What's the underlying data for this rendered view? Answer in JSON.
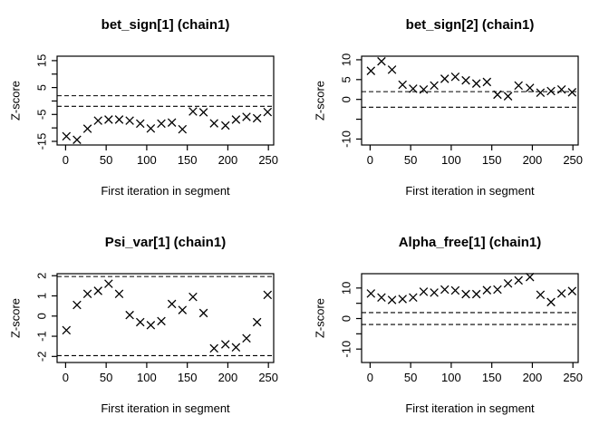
{
  "figure": {
    "background": "#ffffff",
    "line_color": "#000000",
    "threshold_lines": [
      1.96,
      -1.96
    ]
  },
  "chart_data": [
    {
      "type": "scatter",
      "title": "bet_sign[1] (chain1)",
      "xlabel": "First iteration in segment",
      "ylabel": "Z-score",
      "marker": "x",
      "legend": "none",
      "grid": false,
      "x": [
        1,
        14,
        27,
        40,
        53,
        66,
        79,
        92,
        105,
        118,
        131,
        144,
        157,
        170,
        183,
        197,
        210,
        223,
        236,
        249
      ],
      "y": [
        -13.1,
        -14.4,
        -10.3,
        -7.3,
        -6.9,
        -6.9,
        -7.3,
        -8.4,
        -10.2,
        -8.4,
        -8.0,
        -10.5,
        -3.9,
        -4.2,
        -8.3,
        -9.1,
        -6.9,
        -5.9,
        -6.4,
        -4.1
      ],
      "xlim": [
        -10.5,
        256.5
      ],
      "ylim": [
        -16.35,
        16.65
      ],
      "xticks": [
        0,
        50,
        100,
        150,
        200,
        250
      ],
      "ytick_values": [
        15,
        10,
        5,
        0,
        -5,
        -10,
        -15
      ],
      "ytick_labels": [
        "15",
        "",
        "5",
        "",
        "-5",
        "",
        "-15"
      ],
      "dashed_lines": [
        1.96,
        -1.96
      ]
    },
    {
      "type": "scatter",
      "title": "bet_sign[2] (chain1)",
      "xlabel": "First iteration in segment",
      "ylabel": "Z-score",
      "marker": "x",
      "legend": "none",
      "grid": false,
      "x": [
        1,
        14,
        27,
        40,
        53,
        66,
        79,
        92,
        105,
        118,
        131,
        144,
        157,
        170,
        183,
        197,
        210,
        223,
        236,
        249
      ],
      "y": [
        7.2,
        9.6,
        7.5,
        3.7,
        2.7,
        2.5,
        3.5,
        5.2,
        5.7,
        4.8,
        4.0,
        4.4,
        1.2,
        0.8,
        3.5,
        2.9,
        1.7,
        2.1,
        2.5,
        1.8
      ],
      "xlim": [
        -10.5,
        256.5
      ],
      "ylim": [
        -11.5,
        10.9
      ],
      "xticks": [
        0,
        50,
        100,
        150,
        200,
        250
      ],
      "ytick_values": [
        10,
        5,
        0,
        -5,
        -10
      ],
      "ytick_labels": [
        "10",
        "5",
        "0",
        "",
        "-10"
      ],
      "dashed_lines": [
        1.96,
        -1.96
      ]
    },
    {
      "type": "scatter",
      "title": "Psi_var[1] (chain1)",
      "xlabel": "First iteration in segment",
      "ylabel": "Z-score",
      "marker": "x",
      "legend": "none",
      "grid": false,
      "x": [
        1,
        14,
        27,
        40,
        53,
        66,
        79,
        92,
        105,
        118,
        131,
        144,
        157,
        170,
        183,
        197,
        210,
        223,
        236,
        249
      ],
      "y": [
        -0.7,
        0.55,
        1.1,
        1.25,
        1.6,
        1.1,
        0.05,
        -0.3,
        -0.45,
        -0.25,
        0.6,
        0.3,
        0.95,
        0.15,
        -1.6,
        -1.4,
        -1.55,
        -1.1,
        -0.3,
        1.05
      ],
      "xlim": [
        -10.5,
        256.5
      ],
      "ylim": [
        -2.3,
        2.1
      ],
      "xticks": [
        0,
        50,
        100,
        150,
        200,
        250
      ],
      "ytick_values": [
        2,
        1,
        0,
        -1,
        -2
      ],
      "ytick_labels": [
        "2",
        "1",
        "0",
        "-1",
        "-2"
      ],
      "dashed_lines": [
        1.96,
        -1.96
      ]
    },
    {
      "type": "scatter",
      "title": "Alpha_free[1] (chain1)",
      "xlabel": "First iteration in segment",
      "ylabel": "Z-score",
      "marker": "x",
      "legend": "none",
      "grid": false,
      "x": [
        1,
        14,
        27,
        40,
        53,
        66,
        79,
        92,
        105,
        118,
        131,
        144,
        157,
        170,
        183,
        197,
        210,
        223,
        236,
        249
      ],
      "y": [
        8.2,
        6.9,
        6.1,
        6.4,
        6.9,
        8.8,
        8.5,
        9.5,
        9.2,
        8.0,
        8.0,
        9.3,
        9.5,
        11.5,
        12.5,
        13.6,
        7.8,
        5.4,
        8.2,
        9.0
      ],
      "xlim": [
        -10.5,
        256.5
      ],
      "ylim": [
        -14.4,
        14.7
      ],
      "xticks": [
        0,
        50,
        100,
        150,
        200,
        250
      ],
      "ytick_values": [
        10,
        5,
        0,
        -5,
        -10
      ],
      "ytick_labels": [
        "10",
        "",
        "0",
        "",
        "-10"
      ],
      "dashed_lines": [
        1.96,
        -1.96
      ]
    }
  ]
}
